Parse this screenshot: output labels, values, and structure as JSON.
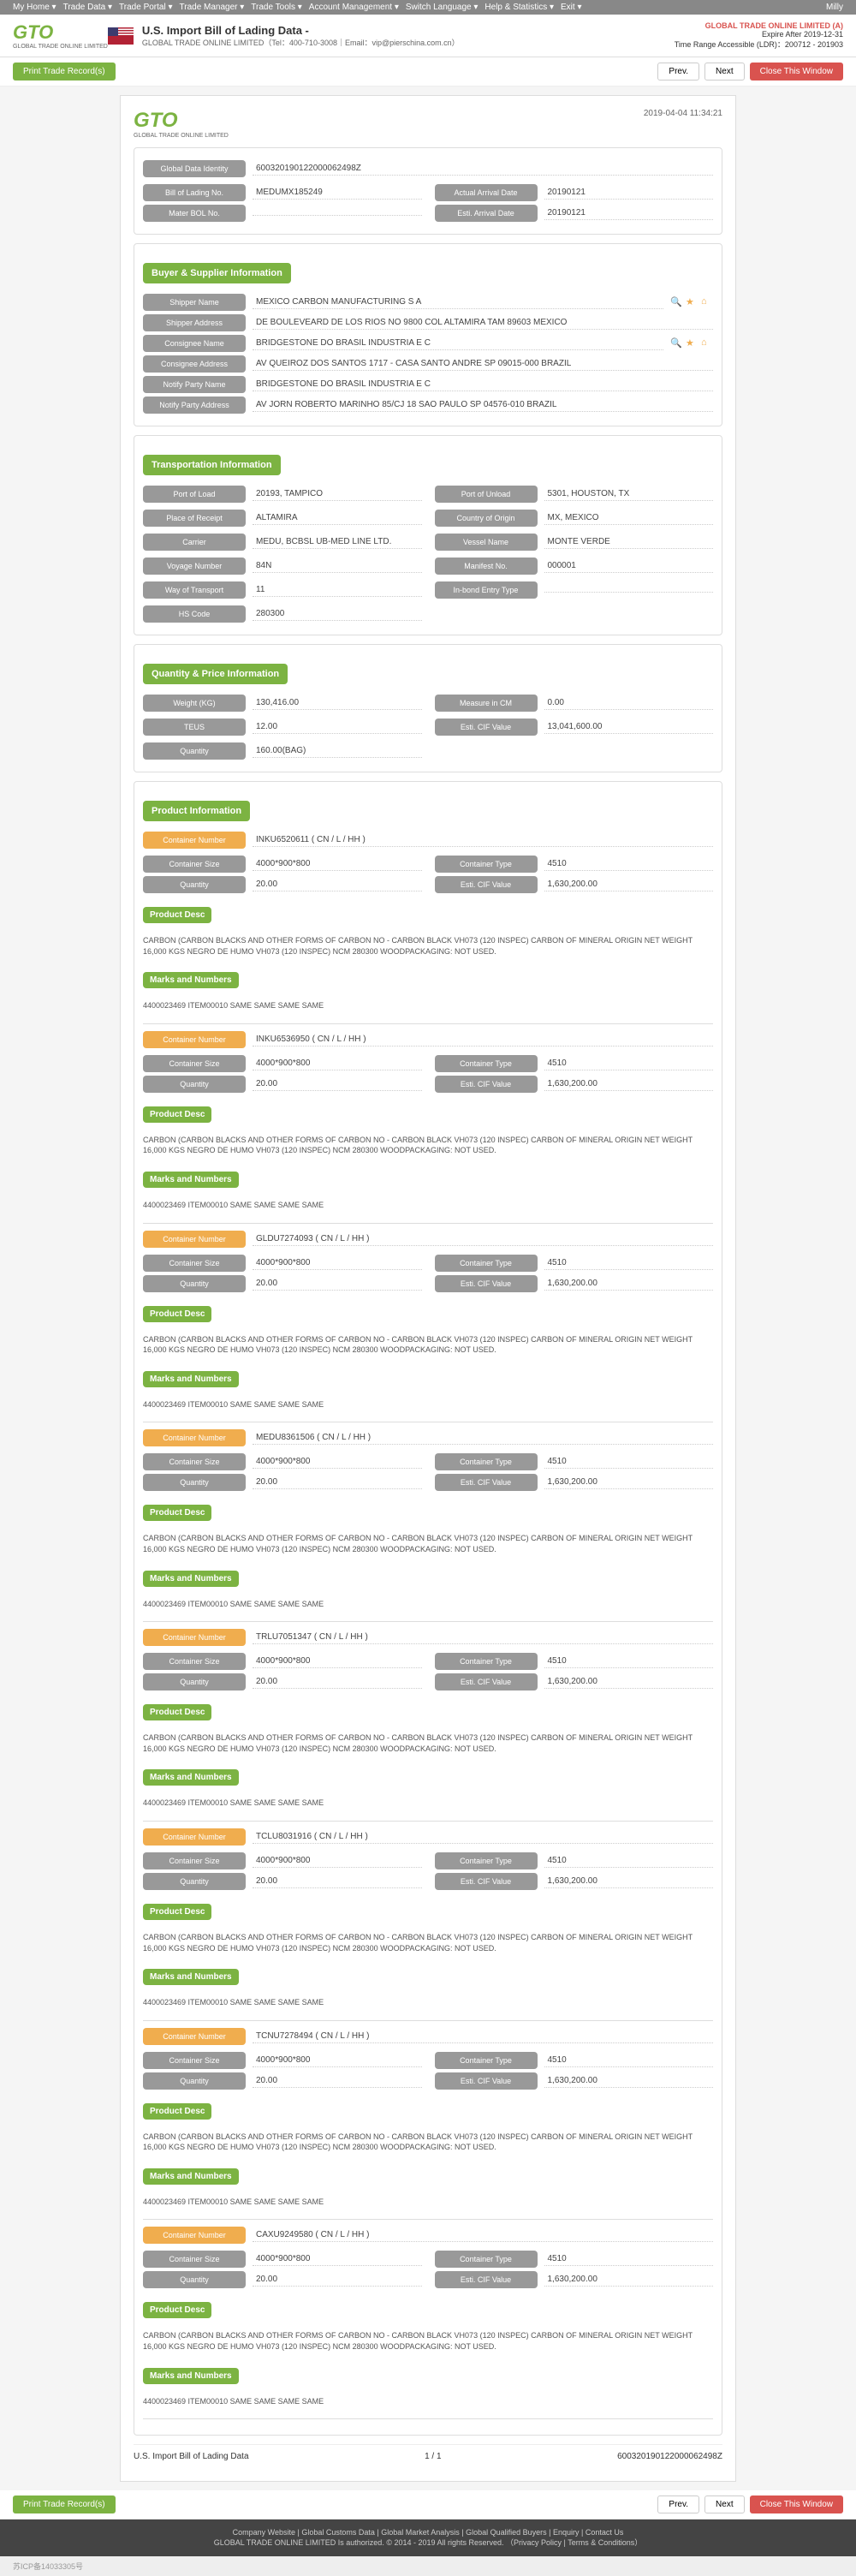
{
  "nav": {
    "items": [
      "My Home",
      "Trade Data",
      "Trade Portal",
      "Trade Manager",
      "Trade Tools",
      "Account Management",
      "Switch Language",
      "Help & Statistics",
      "Exit"
    ],
    "user": "Milly"
  },
  "header": {
    "logo": "GTO",
    "logo_sub": "GLOBAL TRADE ONLINE LIMITED",
    "title": "U.S. Import Bill of Lading Data  -",
    "subtitle": "GLOBAL TRADE ONLINE LIMITED（Tel：400-710-3008｜Email：vip@pierschina.com.cn）",
    "right1": "GLOBAL TRADE ONLINE LIMITED (A)",
    "right2": "Expire After 2019-12-31",
    "right3": "Time Range Accessible (LDR)：200712 - 201903"
  },
  "buttons": {
    "print": "Print Trade Record(s)",
    "prev": "Prev.",
    "next": "Next",
    "close": "Close This Window"
  },
  "doc": {
    "timestamp": "2019-04-04 11:34:21",
    "identity": {
      "label_gdi": "Global Data Identity",
      "gdi": "600320190122000062498Z",
      "label_bol": "Bill of Lading No.",
      "bol": "MEDUMX185249",
      "label_aad": "Actual Arrival Date",
      "aad": "20190121",
      "label_mbol": "Mater BOL No.",
      "mbol": "",
      "label_ead": "Esti. Arrival Date",
      "ead": "20190121"
    },
    "buyer": {
      "head": "Buyer & Supplier Information",
      "label_shipper": "Shipper Name",
      "shipper": "MEXICO CARBON MANUFACTURING S A",
      "label_shipper_addr": "Shipper Address",
      "shipper_addr": "DE BOULEVEARD DE LOS RIOS NO 9800 COL ALTAMIRA TAM 89603 MEXICO",
      "label_consignee": "Consignee Name",
      "consignee": "BRIDGESTONE DO BRASIL INDUSTRIA E C",
      "label_consignee_addr": "Consignee Address",
      "consignee_addr": "AV QUEIROZ DOS SANTOS 1717 - CASA SANTO ANDRE SP 09015-000 BRAZIL",
      "label_notify": "Notify Party Name",
      "notify": "BRIDGESTONE DO BRASIL INDUSTRIA E C",
      "label_notify_addr": "Notify Party Address",
      "notify_addr": "AV JORN ROBERTO MARINHO 85/CJ 18 SAO PAULO SP 04576-010 BRAZIL"
    },
    "transport": {
      "head": "Transportation Information",
      "rows": [
        {
          "l1": "Port of Load",
          "v1": "20193, TAMPICO",
          "l2": "Port of Unload",
          "v2": "5301, HOUSTON, TX"
        },
        {
          "l1": "Place of Receipt",
          "v1": "ALTAMIRA",
          "l2": "Country of Origin",
          "v2": "MX, MEXICO"
        },
        {
          "l1": "Carrier",
          "v1": "MEDU, BCBSL UB-MED LINE LTD.",
          "l2": "Vessel Name",
          "v2": "MONTE VERDE"
        },
        {
          "l1": "Voyage Number",
          "v1": "84N",
          "l2": "Manifest No.",
          "v2": "000001"
        },
        {
          "l1": "Way of Transport",
          "v1": "11",
          "l2": "In-bond Entry Type",
          "v2": ""
        },
        {
          "l1": "HS Code",
          "v1": "280300",
          "l2": "",
          "v2": ""
        }
      ]
    },
    "qty": {
      "head": "Quantity & Price Information",
      "rows": [
        {
          "l1": "Weight (KG)",
          "v1": "130,416.00",
          "l2": "Measure in CM",
          "v2": "0.00"
        },
        {
          "l1": "TEUS",
          "v1": "12.00",
          "l2": "Esti. CIF Value",
          "v2": "13,041,600.00"
        },
        {
          "l1": "Quantity",
          "v1": "160.00(BAG)",
          "l2": "",
          "v2": ""
        }
      ]
    },
    "product": {
      "head": "Product Information",
      "label_cn": "Container Number",
      "label_cs": "Container Size",
      "label_q": "Quantity",
      "label_ct": "Container Type",
      "label_cif": "Esti. CIF  Value",
      "label_pd": "Product Desc",
      "label_mn": "Marks and Numbers",
      "desc": "CARBON (CARBON BLACKS AND OTHER FORMS OF CARBON NO - CARBON BLACK VH073 (120 INSPEC) CARBON OF MINERAL ORIGIN NET WEIGHT 16,000 KGS NEGRO DE HUMO VH073 (120 INSPEC) NCM 280300 WOODPACKAGING: NOT USED.",
      "marks": "4400023469 ITEM00010 SAME SAME SAME SAME",
      "containers": [
        {
          "num": "INKU6520611 ( CN / L / HH )",
          "size": "4000*900*800",
          "qty": "20.00",
          "type": "4510",
          "cif": "1,630,200.00"
        },
        {
          "num": "INKU6536950 ( CN / L / HH )",
          "size": "4000*900*800",
          "qty": "20.00",
          "type": "4510",
          "cif": "1,630,200.00"
        },
        {
          "num": "GLDU7274093 ( CN / L / HH )",
          "size": "4000*900*800",
          "qty": "20.00",
          "type": "4510",
          "cif": "1,630,200.00"
        },
        {
          "num": "MEDU8361506 ( CN / L / HH )",
          "size": "4000*900*800",
          "qty": "20.00",
          "type": "4510",
          "cif": "1,630,200.00"
        },
        {
          "num": "TRLU7051347 ( CN / L / HH )",
          "size": "4000*900*800",
          "qty": "20.00",
          "type": "4510",
          "cif": "1,630,200.00"
        },
        {
          "num": "TCLU8031916 ( CN / L / HH )",
          "size": "4000*900*800",
          "qty": "20.00",
          "type": "4510",
          "cif": "1,630,200.00"
        },
        {
          "num": "TCNU7278494 ( CN / L / HH )",
          "size": "4000*900*800",
          "qty": "20.00",
          "type": "4510",
          "cif": "1,630,200.00"
        },
        {
          "num": "CAXU9249580 ( CN / L / HH )",
          "size": "4000*900*800",
          "qty": "20.00",
          "type": "4510",
          "cif": "1,630,200.00"
        }
      ]
    },
    "footer": {
      "left": "U.S. Import Bill of Lading Data",
      "center": "1 / 1",
      "right": "600320190122000062498Z"
    }
  },
  "bottom": {
    "links": "Company Website | Global Customs Data | Global Market Analysis | Global Qualified Buyers | Enquiry | Contact Us",
    "copyright": "GLOBAL TRADE ONLINE LIMITED Is authorized.  © 2014 - 2019 All rights Reserved.  （Privacy Policy | Terms & Conditions）",
    "icp": "苏ICP备14033305号"
  }
}
